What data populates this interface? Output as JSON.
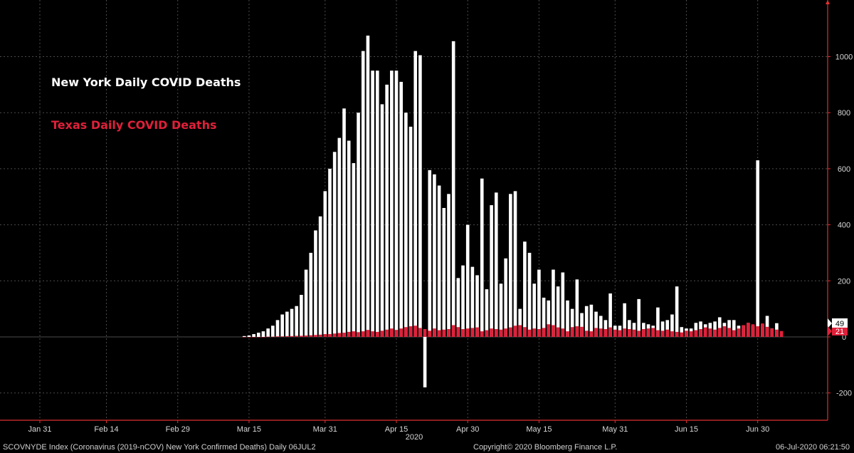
{
  "chart_data": {
    "type": "bar",
    "x_ticks": [
      "Jan 31",
      "Feb 14",
      "Feb 29",
      "Mar 15",
      "Mar 31",
      "Apr 15",
      "Apr 30",
      "May 15",
      "May 31",
      "Jun 15",
      "Jun 30"
    ],
    "x_year_label": "2020",
    "y_ticks": [
      -200,
      0,
      200,
      400,
      600,
      800,
      1000
    ],
    "ylim": [
      -250,
      1180
    ],
    "grid": true,
    "legend_position": "top-left",
    "series": [
      {
        "name": "New York Daily COVID Deaths",
        "color": "#ffffff",
        "start_date": "2020-03-14",
        "values": [
          3,
          5,
          10,
          15,
          20,
          30,
          40,
          60,
          80,
          90,
          100,
          110,
          150,
          240,
          300,
          380,
          430,
          520,
          600,
          660,
          710,
          815,
          700,
          620,
          800,
          1020,
          1075,
          950,
          950,
          830,
          900,
          950,
          950,
          910,
          800,
          750,
          1020,
          1005,
          -180,
          595,
          580,
          540,
          460,
          510,
          1055,
          210,
          255,
          400,
          250,
          220,
          565,
          170,
          470,
          515,
          190,
          280,
          510,
          520,
          100,
          340,
          300,
          190,
          240,
          140,
          130,
          240,
          180,
          230,
          130,
          100,
          205,
          85,
          110,
          115,
          90,
          75,
          60,
          155,
          40,
          40,
          120,
          60,
          50,
          135,
          50,
          45,
          40,
          105,
          55,
          60,
          80,
          180,
          35,
          30,
          30,
          50,
          55,
          45,
          50,
          55,
          70,
          50,
          60,
          60,
          40,
          40,
          50,
          40,
          630,
          45,
          75,
          30,
          49
        ]
      },
      {
        "name": "Texas Daily COVID Deaths",
        "color": "#e0203a",
        "start_date": "2020-03-14",
        "values": [
          0,
          0,
          0,
          0,
          0,
          1,
          1,
          2,
          2,
          3,
          3,
          4,
          4,
          5,
          6,
          7,
          8,
          10,
          10,
          12,
          14,
          15,
          18,
          20,
          17,
          20,
          25,
          20,
          18,
          22,
          26,
          30,
          25,
          30,
          35,
          38,
          40,
          32,
          28,
          22,
          30,
          24,
          26,
          28,
          42,
          35,
          28,
          30,
          32,
          34,
          20,
          24,
          30,
          28,
          26,
          30,
          34,
          40,
          42,
          35,
          26,
          30,
          28,
          32,
          45,
          42,
          34,
          30,
          20,
          35,
          38,
          36,
          22,
          20,
          32,
          30,
          28,
          34,
          26,
          24,
          30,
          28,
          26,
          22,
          28,
          30,
          32,
          24,
          22,
          26,
          20,
          18,
          16,
          22,
          20,
          24,
          28,
          34,
          30,
          26,
          32,
          38,
          32,
          24,
          30,
          42,
          50,
          45,
          38,
          48,
          36,
          30,
          26,
          21
        ]
      }
    ]
  },
  "last_values": {
    "new_york": "49",
    "texas": "21"
  },
  "footer": {
    "left": "SCOVNYDE Index (Coronavirus (2019-nCOV) New York Confirmed Deaths)  Daily 06JUL2",
    "center": "Copyright© 2020 Bloomberg Finance L.P.",
    "right": "06-Jul-2020 06:21:50"
  }
}
